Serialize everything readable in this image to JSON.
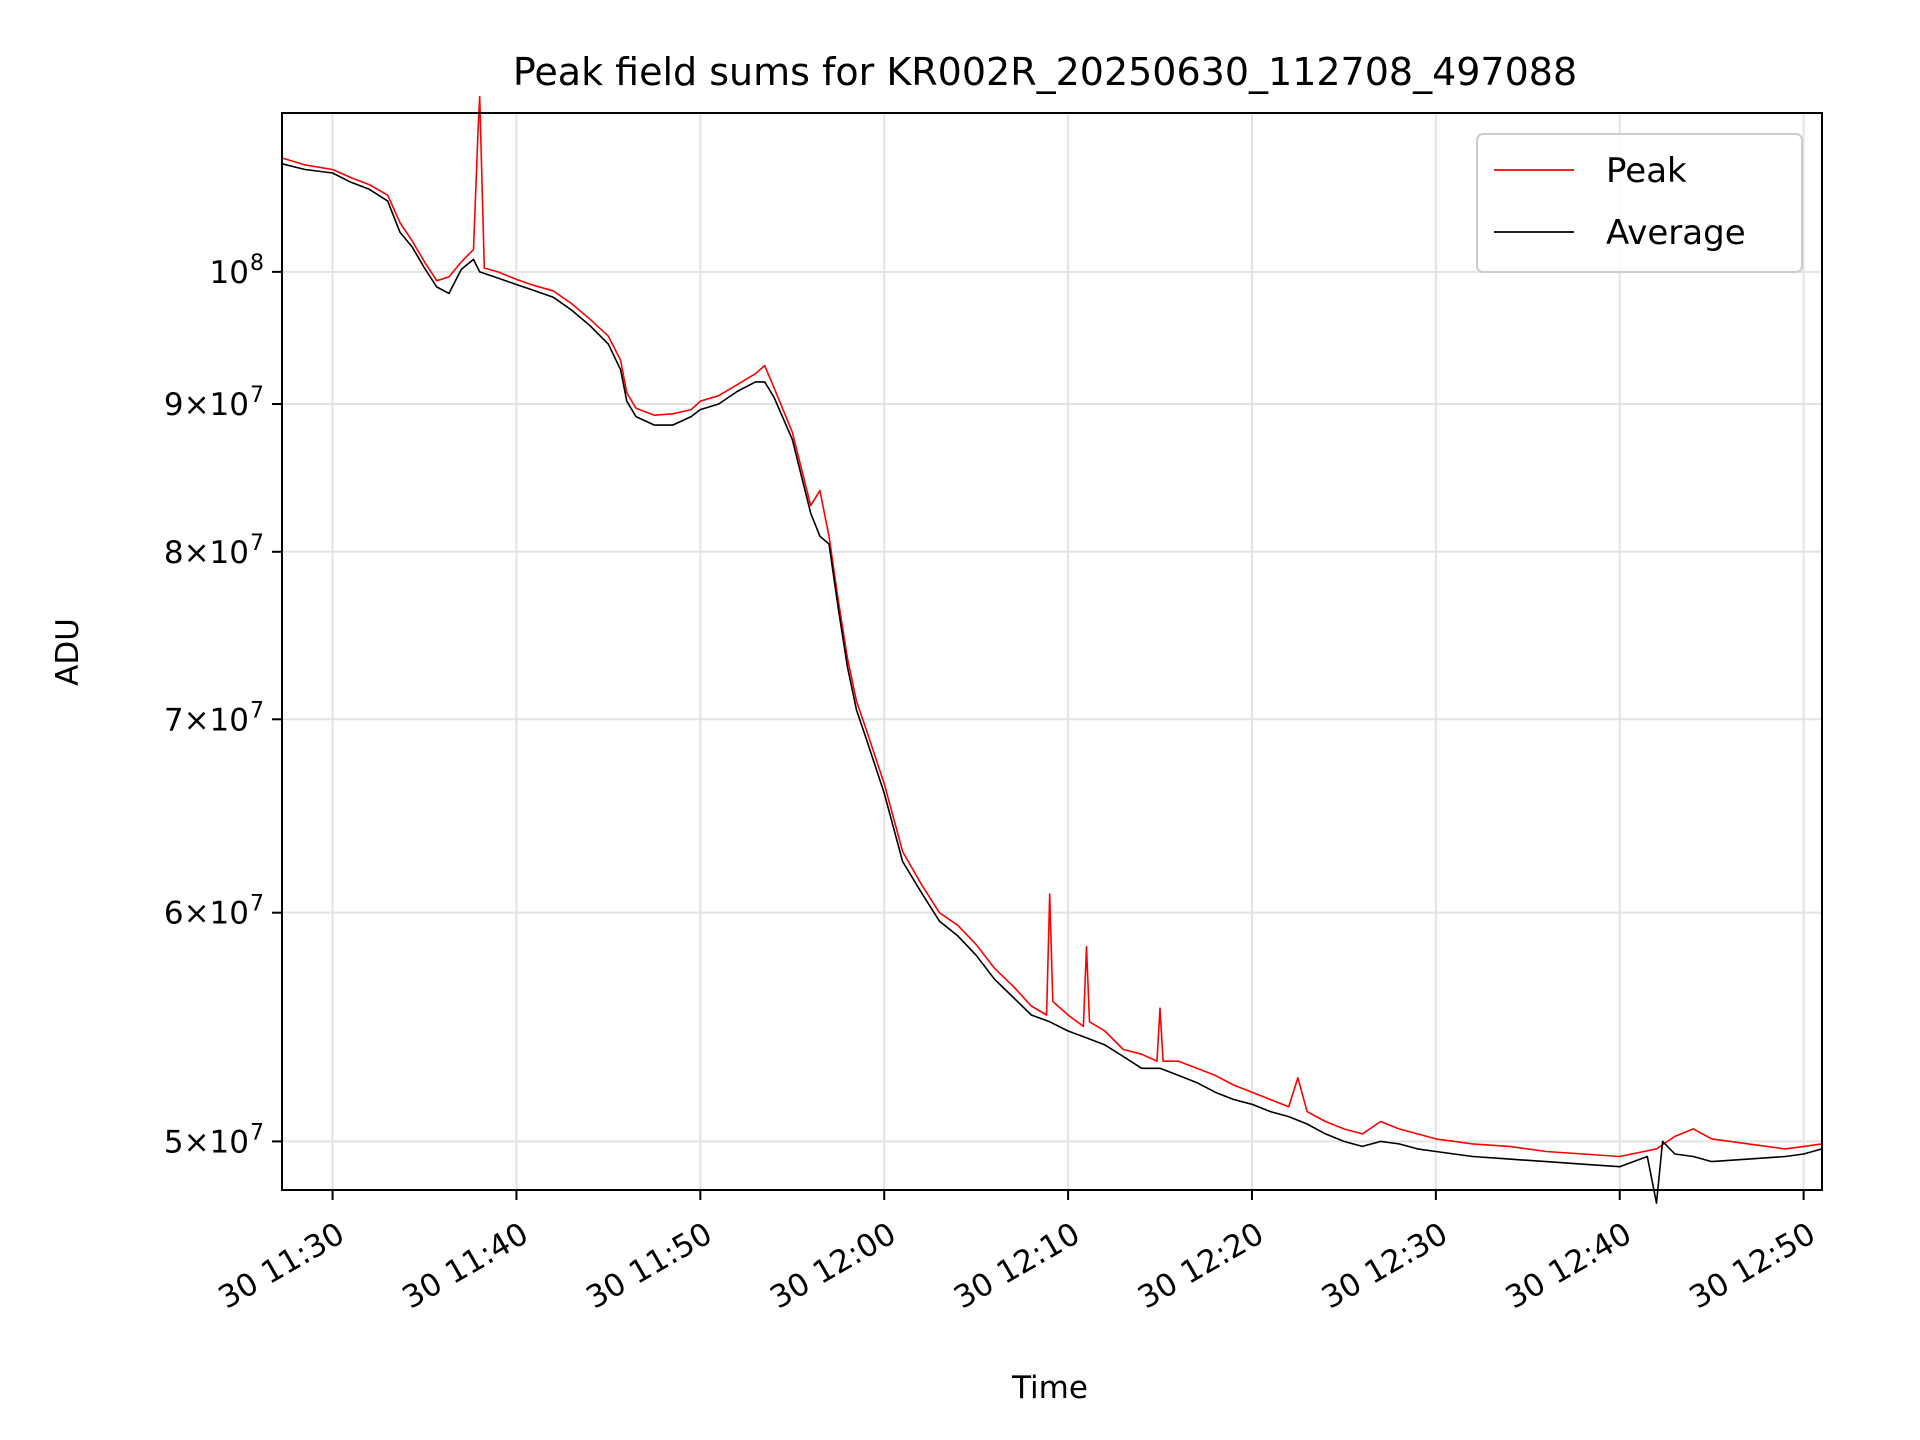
{
  "chart_data": {
    "type": "line",
    "title": "Peak field sums for KR002R_20250630_112708_497088",
    "xlabel": "Time",
    "ylabel": "ADU",
    "yscale": "log",
    "grid": true,
    "legend_position": "top-right",
    "xlim": [
      "2025-06-30 11:27:15",
      "2025-06-30 12:51:00"
    ],
    "ylim": [
      48100000,
      113500000
    ],
    "x_ticks": [
      {
        "value": "2025-06-30 11:30",
        "label": "30 11:30"
      },
      {
        "value": "2025-06-30 11:40",
        "label": "30 11:40"
      },
      {
        "value": "2025-06-30 11:50",
        "label": "30 11:50"
      },
      {
        "value": "2025-06-30 12:00",
        "label": "30 12:00"
      },
      {
        "value": "2025-06-30 12:10",
        "label": "30 12:10"
      },
      {
        "value": "2025-06-30 12:20",
        "label": "30 12:20"
      },
      {
        "value": "2025-06-30 12:30",
        "label": "30 12:30"
      },
      {
        "value": "2025-06-30 12:40",
        "label": "30 12:40"
      },
      {
        "value": "2025-06-30 12:50",
        "label": "30 12:50"
      }
    ],
    "y_ticks": [
      {
        "value": 50000000,
        "mantissa": "5",
        "exponent": "7"
      },
      {
        "value": 60000000,
        "mantissa": "6",
        "exponent": "7"
      },
      {
        "value": 70000000,
        "mantissa": "7",
        "exponent": "7"
      },
      {
        "value": 80000000,
        "mantissa": "8",
        "exponent": "7"
      },
      {
        "value": 90000000,
        "mantissa": "9",
        "exponent": "7"
      },
      {
        "value": 100000000,
        "mantissa": "",
        "exponent": "8"
      }
    ],
    "tick_base": "10",
    "tick_times": "×",
    "series": [
      {
        "name": "Peak",
        "color": "#ff0000",
        "x": [
          "2025-06-30 11:27:15",
          "2025-06-30 11:28:30",
          "2025-06-30 11:30:00",
          "2025-06-30 11:31:00",
          "2025-06-30 11:32:00",
          "2025-06-30 11:33:00",
          "2025-06-30 11:33:40",
          "2025-06-30 11:34:20",
          "2025-06-30 11:35:00",
          "2025-06-30 11:35:40",
          "2025-06-30 11:36:20",
          "2025-06-30 11:37:00",
          "2025-06-30 11:37:40",
          "2025-06-30 11:37:55",
          "2025-06-30 11:38:00",
          "2025-06-30 11:38:15",
          "2025-06-30 11:39:00",
          "2025-06-30 11:40:00",
          "2025-06-30 11:41:00",
          "2025-06-30 11:42:00",
          "2025-06-30 11:43:00",
          "2025-06-30 11:44:00",
          "2025-06-30 11:45:00",
          "2025-06-30 11:45:40",
          "2025-06-30 11:46:00",
          "2025-06-30 11:46:30",
          "2025-06-30 11:47:30",
          "2025-06-30 11:48:30",
          "2025-06-30 11:49:30",
          "2025-06-30 11:50:00",
          "2025-06-30 11:51:00",
          "2025-06-30 11:52:00",
          "2025-06-30 11:53:00",
          "2025-06-30 11:53:30",
          "2025-06-30 11:54:00",
          "2025-06-30 11:55:00",
          "2025-06-30 11:56:00",
          "2025-06-30 11:56:30",
          "2025-06-30 11:57:00",
          "2025-06-30 11:57:30",
          "2025-06-30 11:58:00",
          "2025-06-30 11:58:30",
          "2025-06-30 11:59:00",
          "2025-06-30 12:00:00",
          "2025-06-30 12:01:00",
          "2025-06-30 12:02:00",
          "2025-06-30 12:03:00",
          "2025-06-30 12:04:00",
          "2025-06-30 12:05:00",
          "2025-06-30 12:06:00",
          "2025-06-30 12:07:00",
          "2025-06-30 12:08:00",
          "2025-06-30 12:08:50",
          "2025-06-30 12:09:00",
          "2025-06-30 12:09:10",
          "2025-06-30 12:10:00",
          "2025-06-30 12:10:50",
          "2025-06-30 12:11:00",
          "2025-06-30 12:11:10",
          "2025-06-30 12:12:00",
          "2025-06-30 12:13:00",
          "2025-06-30 12:14:00",
          "2025-06-30 12:14:50",
          "2025-06-30 12:15:00",
          "2025-06-30 12:15:10",
          "2025-06-30 12:16:00",
          "2025-06-30 12:17:00",
          "2025-06-30 12:18:00",
          "2025-06-30 12:19:00",
          "2025-06-30 12:20:00",
          "2025-06-30 12:21:00",
          "2025-06-30 12:22:00",
          "2025-06-30 12:22:30",
          "2025-06-30 12:23:00",
          "2025-06-30 12:24:00",
          "2025-06-30 12:25:00",
          "2025-06-30 12:26:00",
          "2025-06-30 12:27:00",
          "2025-06-30 12:28:00",
          "2025-06-30 12:29:00",
          "2025-06-30 12:30:00",
          "2025-06-30 12:32:00",
          "2025-06-30 12:34:00",
          "2025-06-30 12:36:00",
          "2025-06-30 12:38:00",
          "2025-06-30 12:40:00",
          "2025-06-30 12:42:00",
          "2025-06-30 12:43:00",
          "2025-06-30 12:44:00",
          "2025-06-30 12:45:00",
          "2025-06-30 12:47:00",
          "2025-06-30 12:49:00",
          "2025-06-30 12:50:00",
          "2025-06-30 12:51:00"
        ],
        "y": [
          109500000,
          108900000,
          108500000,
          107800000,
          107200000,
          106300000,
          104000000,
          102500000,
          100800000,
          99300000,
          99600000,
          100800000,
          101800000,
          112000000,
          115000000,
          100300000,
          100000000,
          99400000,
          98900000,
          98500000,
          97500000,
          96300000,
          95000000,
          93200000,
          90800000,
          89700000,
          89200000,
          89300000,
          89600000,
          90200000,
          90600000,
          91400000,
          92200000,
          92800000,
          91200000,
          88000000,
          83000000,
          84000000,
          81000000,
          77000000,
          73500000,
          71000000,
          69500000,
          66500000,
          63000000,
          61400000,
          60000000,
          59400000,
          58500000,
          57400000,
          56600000,
          55700000,
          55300000,
          60900000,
          55900000,
          55300000,
          54800000,
          58400000,
          55000000,
          54600000,
          53800000,
          53600000,
          53300000,
          55600000,
          53300000,
          53300000,
          53000000,
          52700000,
          52300000,
          52000000,
          51700000,
          51400000,
          52600000,
          51200000,
          50800000,
          50500000,
          50300000,
          50800000,
          50500000,
          50300000,
          50100000,
          49900000,
          49800000,
          49600000,
          49500000,
          49400000,
          49700000,
          50200000,
          50500000,
          50100000,
          49900000,
          49700000,
          49800000,
          49900000
        ]
      },
      {
        "name": "Average",
        "color": "#000000",
        "x": [
          "2025-06-30 11:27:15",
          "2025-06-30 11:28:30",
          "2025-06-30 11:30:00",
          "2025-06-30 11:31:00",
          "2025-06-30 11:32:00",
          "2025-06-30 11:33:00",
          "2025-06-30 11:33:40",
          "2025-06-30 11:34:20",
          "2025-06-30 11:35:00",
          "2025-06-30 11:35:40",
          "2025-06-30 11:36:20",
          "2025-06-30 11:37:00",
          "2025-06-30 11:37:40",
          "2025-06-30 11:38:00",
          "2025-06-30 11:39:00",
          "2025-06-30 11:40:00",
          "2025-06-30 11:41:00",
          "2025-06-30 11:42:00",
          "2025-06-30 11:43:00",
          "2025-06-30 11:44:00",
          "2025-06-30 11:45:00",
          "2025-06-30 11:45:40",
          "2025-06-30 11:46:00",
          "2025-06-30 11:46:30",
          "2025-06-30 11:47:30",
          "2025-06-30 11:48:30",
          "2025-06-30 11:49:30",
          "2025-06-30 11:50:00",
          "2025-06-30 11:51:00",
          "2025-06-30 11:52:00",
          "2025-06-30 11:53:00",
          "2025-06-30 11:53:30",
          "2025-06-30 11:54:00",
          "2025-06-30 11:55:00",
          "2025-06-30 11:56:00",
          "2025-06-30 11:56:30",
          "2025-06-30 11:57:00",
          "2025-06-30 11:57:30",
          "2025-06-30 11:58:00",
          "2025-06-30 11:58:30",
          "2025-06-30 11:59:00",
          "2025-06-30 12:00:00",
          "2025-06-30 12:01:00",
          "2025-06-30 12:02:00",
          "2025-06-30 12:03:00",
          "2025-06-30 12:04:00",
          "2025-06-30 12:05:00",
          "2025-06-30 12:06:00",
          "2025-06-30 12:07:00",
          "2025-06-30 12:08:00",
          "2025-06-30 12:09:00",
          "2025-06-30 12:10:00",
          "2025-06-30 12:11:00",
          "2025-06-30 12:12:00",
          "2025-06-30 12:13:00",
          "2025-06-30 12:14:00",
          "2025-06-30 12:15:00",
          "2025-06-30 12:16:00",
          "2025-06-30 12:17:00",
          "2025-06-30 12:18:00",
          "2025-06-30 12:19:00",
          "2025-06-30 12:20:00",
          "2025-06-30 12:21:00",
          "2025-06-30 12:22:00",
          "2025-06-30 12:23:00",
          "2025-06-30 12:24:00",
          "2025-06-30 12:25:00",
          "2025-06-30 12:26:00",
          "2025-06-30 12:27:00",
          "2025-06-30 12:28:00",
          "2025-06-30 12:29:00",
          "2025-06-30 12:30:00",
          "2025-06-30 12:32:00",
          "2025-06-30 12:34:00",
          "2025-06-30 12:36:00",
          "2025-06-30 12:38:00",
          "2025-06-30 12:40:00",
          "2025-06-30 12:41:30",
          "2025-06-30 12:42:00",
          "2025-06-30 12:42:20",
          "2025-06-30 12:43:00",
          "2025-06-30 12:44:00",
          "2025-06-30 12:45:00",
          "2025-06-30 12:47:00",
          "2025-06-30 12:49:00",
          "2025-06-30 12:50:00",
          "2025-06-30 12:51:00"
        ],
        "y": [
          109000000,
          108500000,
          108200000,
          107400000,
          106800000,
          105800000,
          103200000,
          102000000,
          100300000,
          98800000,
          98300000,
          100200000,
          101000000,
          100000000,
          99500000,
          99000000,
          98500000,
          98000000,
          97000000,
          95800000,
          94400000,
          92500000,
          90200000,
          89100000,
          88500000,
          88500000,
          89100000,
          89600000,
          90000000,
          90900000,
          91600000,
          91600000,
          90500000,
          87500000,
          82500000,
          81000000,
          80500000,
          76500000,
          73000000,
          70500000,
          69000000,
          66000000,
          62500000,
          61000000,
          59600000,
          58900000,
          58000000,
          56900000,
          56100000,
          55300000,
          55000000,
          54600000,
          54300000,
          54000000,
          53500000,
          53000000,
          53000000,
          52700000,
          52400000,
          52000000,
          51700000,
          51500000,
          51200000,
          51000000,
          50700000,
          50300000,
          50000000,
          49800000,
          50000000,
          49900000,
          49700000,
          49600000,
          49400000,
          49300000,
          49200000,
          49100000,
          49000000,
          49400000,
          47600000,
          50000000,
          49500000,
          49400000,
          49200000,
          49300000,
          49400000,
          49500000,
          49700000
        ]
      }
    ]
  }
}
